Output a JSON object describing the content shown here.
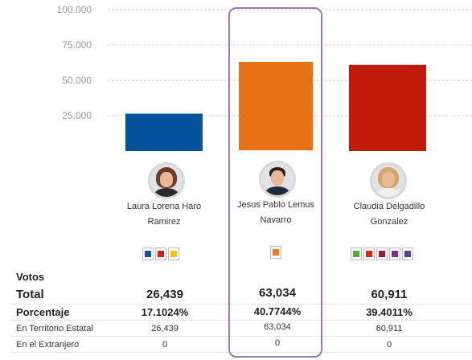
{
  "chart_data": {
    "type": "bar",
    "categories": [
      "Laura Lorena Haro Ramirez",
      "Jesus Pablo Lemus Navarro",
      "Claudia Delgadillo Gonzalez"
    ],
    "values": [
      26439,
      63034,
      60911
    ],
    "y_ticks": [
      "25.000",
      "50.000",
      "75.000",
      "100.000"
    ],
    "ylim": [
      0,
      105000
    ],
    "grid": true,
    "bar_colors": [
      "#03529c",
      "#e87015",
      "#c41a0b"
    ]
  },
  "candidates": [
    {
      "name_line1": "Laura Lorena Haro",
      "name_line2": "Ramirez",
      "avatar": "woman-portrait",
      "parties": [
        {
          "name": "PAN",
          "color": "#1a4f9c"
        },
        {
          "name": "PRI",
          "color": "#d61a1f"
        },
        {
          "name": "PRD",
          "color": "#f2c500"
        }
      ]
    },
    {
      "name_line1": "Jesus Pablo Lemus",
      "name_line2": "Navarro",
      "avatar": "man-portrait",
      "parties": [
        {
          "name": "MC",
          "color": "#f07c14"
        }
      ]
    },
    {
      "name_line1": "Claudia Delgadillo",
      "name_line2": "Gonzalez",
      "avatar": "woman-portrait",
      "parties": [
        {
          "name": "PVEM",
          "color": "#4caf2f"
        },
        {
          "name": "PT",
          "color": "#e2231a"
        },
        {
          "name": "morena",
          "color": "#a0153e"
        },
        {
          "name": "Hagamos",
          "color": "#7a2a8c"
        },
        {
          "name": "Futuro",
          "color": "#5b3c8f"
        }
      ]
    }
  ],
  "table": {
    "votos_label": "Votos",
    "total_label": "Total",
    "porcentaje_label": "Porcentaje",
    "territorio_label": "En Territorio Estatal",
    "extranjero_label": "En el Extranjero",
    "totals": [
      "26,439",
      "63,034",
      "60,911"
    ],
    "percentages": [
      "17.1024%",
      "40.7744%",
      "39.4011%"
    ],
    "territorio": [
      "26,439",
      "63,034",
      "60,911"
    ],
    "extranjero": [
      "0",
      "0",
      "0"
    ]
  },
  "highlight_color": "#9b7ab5",
  "party_logo_label": "morena"
}
